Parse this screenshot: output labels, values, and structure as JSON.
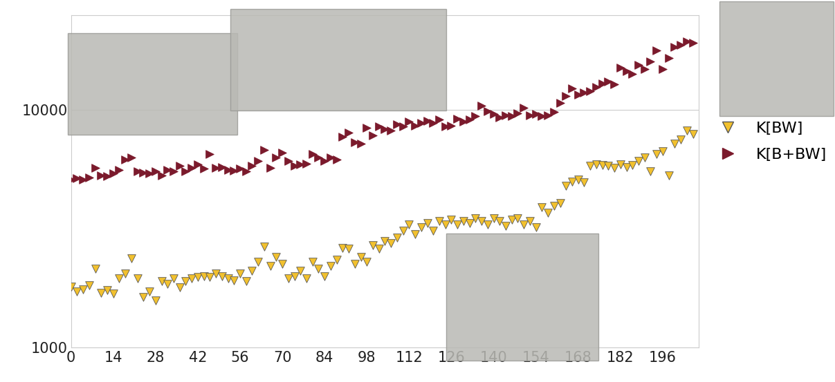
{
  "chart_data": {
    "type": "scatter",
    "x": [
      0,
      2,
      4,
      6,
      8,
      10,
      12,
      14,
      16,
      18,
      20,
      22,
      24,
      26,
      28,
      30,
      32,
      34,
      36,
      38,
      40,
      42,
      44,
      46,
      48,
      50,
      52,
      54,
      56,
      58,
      60,
      62,
      64,
      66,
      68,
      70,
      72,
      74,
      76,
      78,
      80,
      82,
      84,
      86,
      88,
      90,
      92,
      94,
      96,
      98,
      100,
      102,
      104,
      106,
      108,
      110,
      112,
      114,
      116,
      118,
      120,
      122,
      124,
      126,
      128,
      130,
      132,
      134,
      136,
      138,
      140,
      142,
      144,
      146,
      148,
      150,
      152,
      154,
      156,
      158,
      160,
      162,
      164,
      166,
      168,
      170,
      172,
      174,
      176,
      178,
      180,
      182,
      184,
      186,
      188,
      190,
      192,
      194,
      196,
      198,
      200,
      202,
      204,
      206
    ],
    "series": [
      {
        "name": "K[BW]",
        "color": "#f2c12e",
        "marker": "triangle_down",
        "values": [
          1800,
          1720,
          1760,
          1830,
          2150,
          1700,
          1750,
          1690,
          1950,
          2050,
          2370,
          1950,
          1630,
          1720,
          1580,
          1900,
          1850,
          1950,
          1790,
          1900,
          1950,
          1980,
          2000,
          1980,
          2050,
          2000,
          1950,
          1920,
          2050,
          1900,
          2100,
          2300,
          2660,
          2200,
          2400,
          2250,
          1950,
          2000,
          2100,
          1950,
          2300,
          2150,
          2000,
          2200,
          2350,
          2620,
          2600,
          2250,
          2400,
          2300,
          2700,
          2600,
          2800,
          2750,
          2900,
          3100,
          3300,
          3000,
          3200,
          3350,
          3100,
          3400,
          3300,
          3450,
          3300,
          3400,
          3350,
          3500,
          3400,
          3300,
          3500,
          3400,
          3250,
          3450,
          3500,
          3300,
          3400,
          3200,
          3900,
          3700,
          3950,
          4050,
          4800,
          5000,
          5100,
          4950,
          5800,
          5900,
          5850,
          5800,
          5700,
          5900,
          5750,
          5850,
          6100,
          6300,
          5500,
          6500,
          6700,
          5300,
          7200,
          7500,
          8200,
          7900
        ]
      },
      {
        "name": "K[B+BW]",
        "color": "#7b1a2c",
        "marker": "triangle_right",
        "values": [
          5100,
          5150,
          5100,
          5200,
          5700,
          5300,
          5250,
          5400,
          5600,
          6200,
          6300,
          5500,
          5450,
          5400,
          5500,
          5300,
          5600,
          5500,
          5800,
          5500,
          5700,
          5900,
          5650,
          6500,
          5700,
          5750,
          5600,
          5550,
          5650,
          5500,
          5800,
          6100,
          6800,
          5700,
          6300,
          6600,
          6100,
          5800,
          5900,
          5950,
          6500,
          6300,
          6100,
          6300,
          6200,
          7700,
          8000,
          7300,
          7200,
          8400,
          7800,
          8500,
          8300,
          8200,
          8700,
          8500,
          8900,
          8600,
          8800,
          9000,
          8800,
          9100,
          8500,
          8600,
          9200,
          8900,
          9100,
          9400,
          10400,
          9900,
          9600,
          9300,
          9500,
          9400,
          9700,
          10200,
          9500,
          9600,
          9400,
          9500,
          9800,
          10700,
          11400,
          12300,
          11600,
          11800,
          12000,
          12500,
          12900,
          13200,
          12800,
          15000,
          14600,
          14200,
          15500,
          14800,
          16000,
          17800,
          14800,
          16500,
          18400,
          18800,
          19400,
          19200
        ]
      }
    ],
    "xlim": [
      0,
      208
    ],
    "xticks": [
      0,
      14,
      28,
      42,
      56,
      70,
      84,
      98,
      112,
      126,
      140,
      154,
      168,
      182,
      196
    ],
    "ylim": [
      1000,
      25000
    ],
    "yticks": [
      1000,
      10000
    ],
    "log": "y",
    "grid": "y",
    "legend": "right"
  }
}
